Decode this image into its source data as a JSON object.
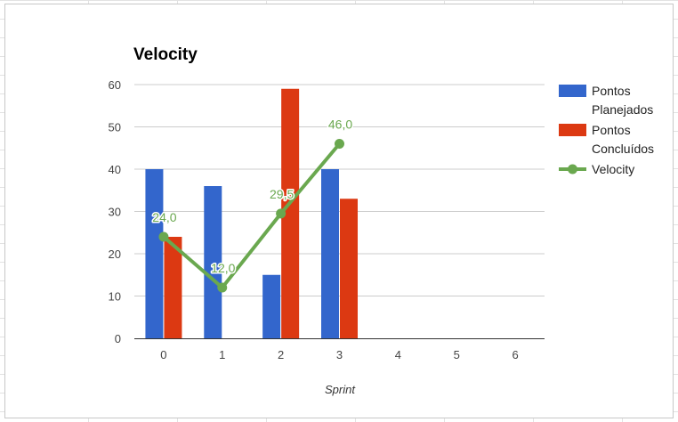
{
  "chart_data": {
    "type": "bar",
    "title": "Velocity",
    "xlabel": "Sprint",
    "ylabel": "",
    "categories": [
      "0",
      "1",
      "2",
      "3",
      "4",
      "5",
      "6"
    ],
    "ylim": [
      0,
      60
    ],
    "yticks": [
      0,
      10,
      20,
      30,
      40,
      50,
      60
    ],
    "grid": true,
    "legend_position": "right",
    "series": [
      {
        "name": "Pontos Planejados",
        "type": "bar",
        "color": "#3366cc",
        "values": [
          40,
          36,
          15,
          40,
          null,
          null,
          null
        ]
      },
      {
        "name": "Pontos Concluídos",
        "type": "bar",
        "color": "#dc3912",
        "values": [
          24,
          0,
          59,
          33,
          null,
          null,
          null
        ]
      },
      {
        "name": "Velocity",
        "type": "line",
        "color": "#6aa84f",
        "values": [
          24,
          12,
          29.5,
          46,
          null,
          null,
          null
        ],
        "labels": [
          "24,0",
          "12,0",
          "29,5",
          "46,0",
          null,
          null,
          null
        ]
      }
    ]
  }
}
